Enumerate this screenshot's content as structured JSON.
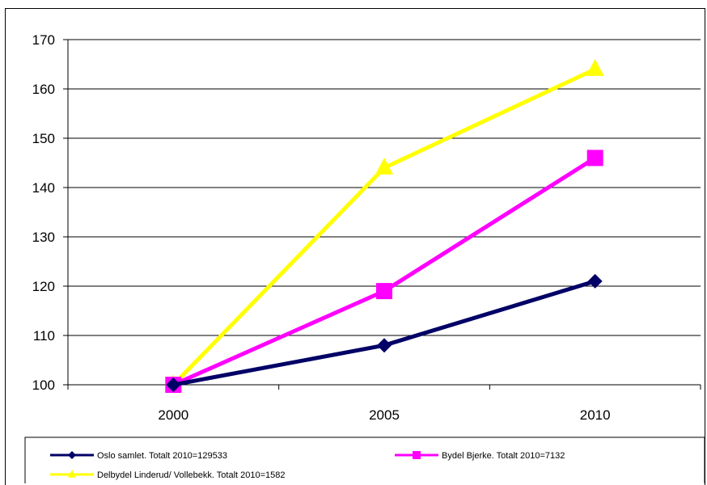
{
  "chart_data": {
    "type": "line",
    "title": "",
    "xlabel": "",
    "ylabel": "",
    "x": [
      "2000",
      "2005",
      "2010"
    ],
    "ylim": [
      100,
      170
    ],
    "yticks": [
      100,
      110,
      120,
      130,
      140,
      150,
      160,
      170
    ],
    "grid": "horizontal",
    "legend_position": "bottom",
    "series": [
      {
        "name": "Oslo samlet. Totalt 2010=129533",
        "values": [
          100,
          108,
          121
        ],
        "color": "#000066",
        "marker": "diamond"
      },
      {
        "name": "Bydel Bjerke. Totalt 2010=7132",
        "values": [
          100,
          119,
          146
        ],
        "color": "#ff00ff",
        "marker": "square"
      },
      {
        "name": "Delbydel Linderud/ Vollebekk. Totalt 2010=1582",
        "values": [
          100,
          144,
          164
        ],
        "color": "#ffff00",
        "marker": "triangle"
      }
    ]
  }
}
